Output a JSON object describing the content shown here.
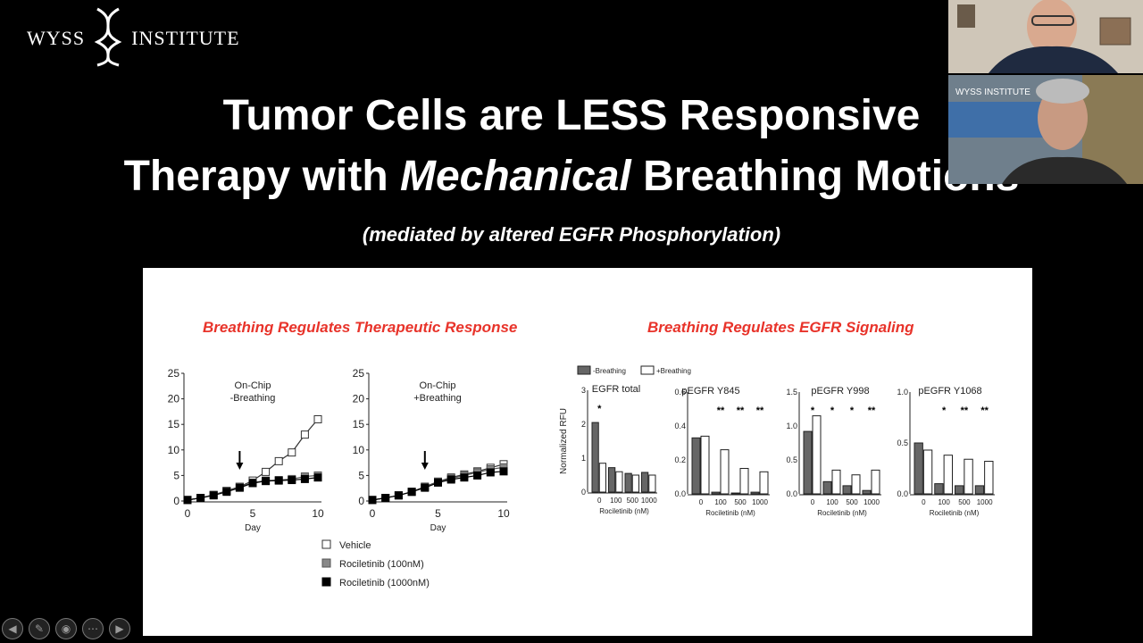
{
  "logo": {
    "left": "WYSS",
    "right": "INSTITUTE"
  },
  "slide": {
    "title_line1": "Tumor Cells are LESS Responsive",
    "title_line2_prefix": "Therapy with ",
    "title_line2_italic": "Mechanical",
    "title_line2_suffix": " Breathing Motions",
    "subtitle": "(mediated by altered EGFR Phosphorylation)",
    "left_heading": "Breathing Regulates Therapeutic Response",
    "right_heading": "Breathing Regulates EGFR Signaling"
  },
  "video_tiles": [
    {
      "logo_text": "WYSS INSTITUTE"
    }
  ],
  "controls": [
    "prev-icon",
    "pen-icon",
    "settings-icon",
    "menu-icon",
    "next-icon"
  ],
  "chart_data": [
    {
      "type": "line",
      "title": "On-Chip -Breathing",
      "xlabel": "Day",
      "ylabel": "",
      "xlim": [
        0,
        10
      ],
      "ylim": [
        0,
        25
      ],
      "x": [
        0,
        1,
        2,
        3,
        4,
        5,
        6,
        7,
        8,
        9,
        10
      ],
      "series": [
        {
          "name": "Vehicle",
          "values": [
            0.2,
            0.6,
            1.2,
            2.0,
            2.8,
            4.0,
            5.7,
            7.8,
            9.5,
            13.0,
            16.0
          ]
        },
        {
          "name": "Rociletinib (100nM)",
          "values": [
            0.2,
            0.6,
            1.2,
            2.0,
            2.8,
            3.6,
            4.0,
            4.1,
            4.3,
            4.8,
            5.0
          ]
        },
        {
          "name": "Rociletinib (1000nM)",
          "values": [
            0.2,
            0.6,
            1.1,
            1.8,
            2.6,
            3.5,
            3.9,
            4.0,
            4.1,
            4.3,
            4.6
          ]
        }
      ],
      "annotation": "arrow at day 4"
    },
    {
      "type": "line",
      "title": "On-Chip +Breathing",
      "xlabel": "Day",
      "ylabel": "",
      "xlim": [
        0,
        10
      ],
      "ylim": [
        0,
        25
      ],
      "x": [
        0,
        1,
        2,
        3,
        4,
        5,
        6,
        7,
        8,
        9,
        10
      ],
      "series": [
        {
          "name": "Vehicle",
          "values": [
            0.2,
            0.6,
            1.1,
            1.8,
            2.8,
            3.8,
            4.6,
            5.2,
            5.8,
            6.5,
            7.2
          ]
        },
        {
          "name": "Rociletinib (100nM)",
          "values": [
            0.2,
            0.6,
            1.1,
            1.8,
            2.7,
            3.7,
            4.4,
            5.0,
            5.6,
            6.2,
            6.6
          ]
        },
        {
          "name": "Rociletinib (1000nM)",
          "values": [
            0.2,
            0.6,
            1.1,
            1.8,
            2.6,
            3.6,
            4.2,
            4.6,
            5.0,
            5.6,
            5.8
          ]
        }
      ],
      "annotation": "arrow at day 4"
    },
    {
      "type": "bar",
      "title": "EGFR total",
      "xlabel": "Rociletinib (nM)",
      "ylabel": "Normalized RFU",
      "categories": [
        "0",
        "100",
        "500",
        "1000"
      ],
      "ylim": [
        0,
        3.0
      ],
      "yticks": [
        "0",
        "1",
        "2",
        "3"
      ],
      "series": [
        {
          "name": "-Breathing",
          "values": [
            2.05,
            0.72,
            0.55,
            0.58
          ]
        },
        {
          "name": "+Breathing",
          "values": [
            0.85,
            0.6,
            0.5,
            0.5
          ]
        }
      ],
      "annotations": [
        "*",
        "",
        "",
        ""
      ]
    },
    {
      "type": "bar",
      "title": "pEGFR Y845",
      "xlabel": "Rociletinib (nM)",
      "ylabel": "",
      "categories": [
        "0",
        "100",
        "500",
        "1000"
      ],
      "ylim": [
        0,
        0.6
      ],
      "yticks": [
        "0.0",
        "0.2",
        "0.4",
        "0.6"
      ],
      "series": [
        {
          "name": "-Breathing",
          "values": [
            0.33,
            0.01,
            0.005,
            0.01
          ]
        },
        {
          "name": "+Breathing",
          "values": [
            0.34,
            0.26,
            0.15,
            0.13
          ]
        }
      ],
      "annotations": [
        "",
        "**",
        "**",
        "**"
      ]
    },
    {
      "type": "bar",
      "title": "pEGFR Y998",
      "xlabel": "Rociletinib (nM)",
      "ylabel": "",
      "categories": [
        "0",
        "100",
        "500",
        "1000"
      ],
      "ylim": [
        0,
        1.5
      ],
      "yticks": [
        "0.0",
        "0.5",
        "1.0",
        "1.5"
      ],
      "series": [
        {
          "name": "-Breathing",
          "values": [
            0.92,
            0.18,
            0.12,
            0.05
          ]
        },
        {
          "name": "+Breathing",
          "values": [
            1.15,
            0.35,
            0.28,
            0.35
          ]
        }
      ],
      "annotations": [
        "*",
        "*",
        "*",
        "**"
      ]
    },
    {
      "type": "bar",
      "title": "pEGFR Y1068",
      "xlabel": "Rociletinib (nM)",
      "ylabel": "",
      "categories": [
        "0",
        "100",
        "500",
        "1000"
      ],
      "ylim": [
        0,
        1.0
      ],
      "yticks": [
        "0.0",
        "0.5",
        "1.0"
      ],
      "series": [
        {
          "name": "-Breathing",
          "values": [
            0.5,
            0.1,
            0.08,
            0.08
          ]
        },
        {
          "name": "+Breathing",
          "values": [
            0.43,
            0.38,
            0.34,
            0.32
          ]
        }
      ],
      "annotations": [
        "",
        "*",
        "**",
        "**"
      ]
    }
  ],
  "colors": {
    "accent": "#e8332a",
    "dark_bar": "#666666",
    "black": "#000000",
    "light_grey": "#888888"
  }
}
